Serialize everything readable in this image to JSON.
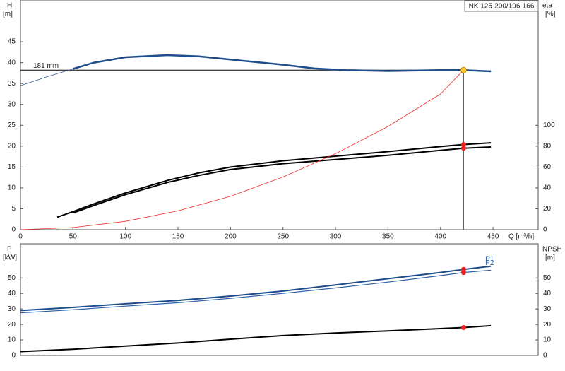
{
  "chart_data": [
    {
      "type": "line",
      "title": "NK 125-200/196-166",
      "y_label": "H",
      "y_unit": "[m]",
      "y2_label": "eta",
      "y2_unit": "[%]",
      "x_label": "Q [m³/h]",
      "xlim": [
        0,
        493
      ],
      "xticks": [
        0,
        50,
        100,
        150,
        200,
        250,
        300,
        350,
        400,
        450
      ],
      "ylim": [
        0,
        55
      ],
      "yticks": [
        0,
        5,
        10,
        15,
        20,
        25,
        30,
        35,
        40,
        45
      ],
      "y2lim": [
        0,
        220
      ],
      "y2ticks": [
        0,
        20,
        40,
        60,
        80,
        100
      ],
      "duty_point": {
        "x": 422,
        "y": 38.2,
        "label": "181 mm",
        "color": "#ffcc33"
      },
      "series": [
        {
          "color": "#3a5a9a",
          "line_width": 0.8,
          "x": [
            0,
            25,
            50
          ],
          "values": [
            34.5,
            36.6,
            38.5
          ]
        },
        {
          "color": "#1e4d8c",
          "line_width": 2.5,
          "x": [
            50,
            70,
            100,
            140,
            170,
            210,
            250,
            280,
            310,
            350,
            400,
            422,
            448
          ],
          "values": [
            38.5,
            40,
            41.3,
            41.8,
            41.5,
            40.5,
            39.5,
            38.6,
            38.2,
            38.0,
            38.2,
            38.2,
            37.9
          ]
        },
        {
          "color": "#000000",
          "line_width": 2,
          "axis": "y2",
          "marker_color": "#ee2020",
          "x": [
            35,
            50,
            70,
            100,
            140,
            170,
            200,
            250,
            300,
            350,
            400,
            422,
            448
          ],
          "values": [
            12,
            17.2,
            24.8,
            35.2,
            47.2,
            54.4,
            60,
            66,
            70.4,
            74.8,
            79.6,
            81.6,
            83.2
          ]
        },
        {
          "color": "#000000",
          "line_width": 2,
          "axis": "y2",
          "marker_color": "#ee2020",
          "x": [
            50,
            70,
            100,
            140,
            170,
            200,
            250,
            300,
            350,
            400,
            422,
            448
          ],
          "values": [
            16,
            23.2,
            33.6,
            45.2,
            52,
            57.6,
            63.2,
            67.2,
            71.2,
            76,
            78,
            79.2
          ]
        },
        {
          "color": "#f03030",
          "line_width": 0.8,
          "x": [
            0,
            50,
            100,
            150,
            200,
            250,
            300,
            350,
            400,
            422
          ],
          "values": [
            0,
            0.5,
            2,
            4.5,
            8,
            12.6,
            18.2,
            24.7,
            32.5,
            38.2
          ]
        }
      ]
    },
    {
      "type": "line",
      "y_label": "P",
      "y_unit": "[kW]",
      "y2_label": "NPSH",
      "y2_unit": "[m]",
      "xlim": [
        0,
        493
      ],
      "ylim": [
        0,
        72
      ],
      "yticks": [
        0,
        10,
        20,
        30,
        40,
        50
      ],
      "y2lim": [
        0,
        72
      ],
      "y2ticks": [
        0,
        10,
        20,
        30,
        40,
        50
      ],
      "series": [
        {
          "name": "P1",
          "color": "#1e4d8c",
          "line_width": 2,
          "marker_color": "#ee2020",
          "x": [
            0,
            50,
            100,
            150,
            200,
            250,
            300,
            350,
            400,
            422,
            448
          ],
          "values": [
            29,
            31,
            33.3,
            35.5,
            38.3,
            41.5,
            45.5,
            49.5,
            53.5,
            55.5,
            57.5
          ]
        },
        {
          "name": "P2",
          "color": "#2a5ea8",
          "line_width": 1.2,
          "marker_color": "#ee2020",
          "x": [
            0,
            50,
            100,
            150,
            200,
            250,
            300,
            350,
            400,
            422,
            448
          ],
          "values": [
            27.5,
            29.5,
            31.8,
            34,
            36.8,
            40,
            43.5,
            47.3,
            51.5,
            53.5,
            55
          ]
        },
        {
          "color": "#000000",
          "line_width": 2,
          "axis": "y2",
          "marker_color": "#ee2020",
          "x": [
            0,
            50,
            100,
            150,
            200,
            250,
            300,
            350,
            400,
            422,
            448
          ],
          "values": [
            2.5,
            4,
            6,
            8,
            10.5,
            12.8,
            14.5,
            15.8,
            17.3,
            18,
            19.2
          ]
        }
      ]
    }
  ]
}
